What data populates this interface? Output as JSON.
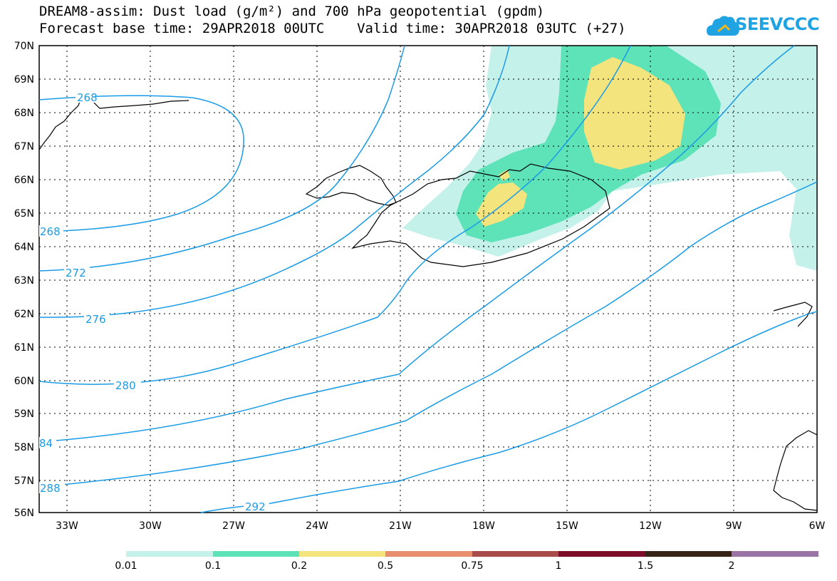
{
  "title_line1": "DREAM8-assim: Dust load (g/m²) and 700 hPa geopotential (gpdm)",
  "title_line2": "Forecast base time: 29APR2018 00UTC    Valid time: 30APR2018 03UTC (+27)",
  "logo_text": "SEEVCCC",
  "lat_labels": [
    "70N",
    "69N",
    "68N",
    "67N",
    "66N",
    "65N",
    "64N",
    "63N",
    "62N",
    "61N",
    "60N",
    "59N",
    "58N",
    "57N",
    "56N"
  ],
  "lon_labels": [
    "33W",
    "30W",
    "27W",
    "24W",
    "21W",
    "18W",
    "15W",
    "12W",
    "9W",
    "6W"
  ],
  "contour_labels": [
    "268",
    "268",
    "272",
    "276",
    "280",
    "84",
    "288",
    "292"
  ],
  "colorbar": {
    "labels": [
      "0.01",
      "0.1",
      "0.2",
      "0.5",
      "0.75",
      "1",
      "1.5",
      "2"
    ],
    "colors": [
      "#c4f2ea",
      "#5ee2b8",
      "#f4e47e",
      "#e88e6e",
      "#a84b4b",
      "#7c0e2b",
      "#382417",
      "#9b74a6"
    ]
  },
  "colors": {
    "contour": "#1a9be6",
    "coast": "#000000",
    "dust_low": "#c4f2ea",
    "dust_mid": "#5ee2b8",
    "dust_high": "#f4e47e"
  },
  "icons": [
    "cloud-logo-icon"
  ]
}
